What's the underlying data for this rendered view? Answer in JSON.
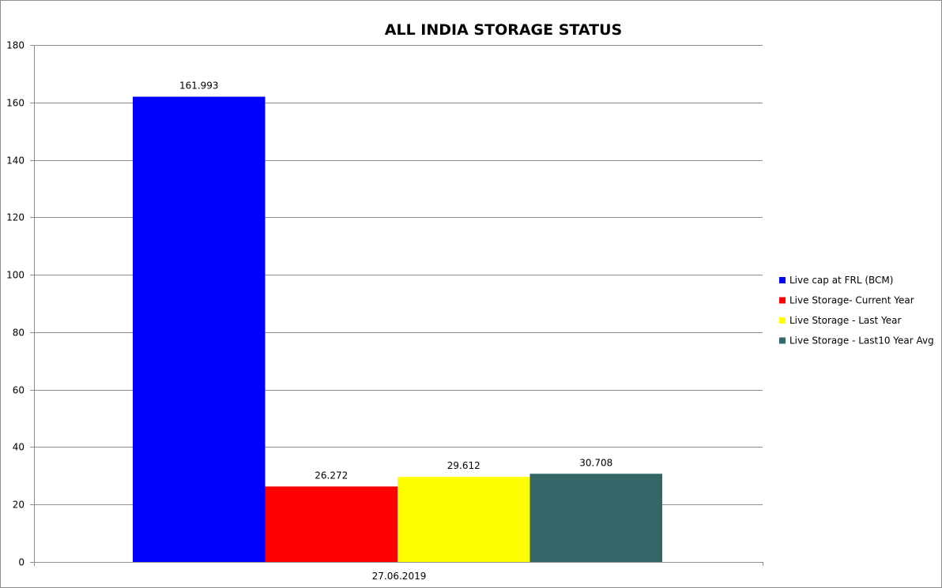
{
  "chart_data": {
    "type": "bar",
    "title": "ALL INDIA STORAGE STATUS",
    "xlabel": "",
    "ylabel": "",
    "categories": [
      "27.06.2019"
    ],
    "ylim": [
      0,
      180
    ],
    "yticks": [
      0,
      20,
      40,
      60,
      80,
      100,
      120,
      140,
      160,
      180
    ],
    "grid": true,
    "legend_position": "right",
    "series": [
      {
        "name": "Live cap at FRL (BCM)",
        "values": [
          161.993
        ],
        "label": "161.993",
        "color": "#0000ff"
      },
      {
        "name": "Live Storage- Current Year",
        "values": [
          26.272
        ],
        "label": "26.272",
        "color": "#ff0000"
      },
      {
        "name": "Live Storage - Last Year",
        "values": [
          29.612
        ],
        "label": "29.612",
        "color": "#ffff00"
      },
      {
        "name": "Live Storage - Last10  Year Avg",
        "values": [
          30.708
        ],
        "label": "30.708",
        "color": "#336666"
      }
    ]
  }
}
